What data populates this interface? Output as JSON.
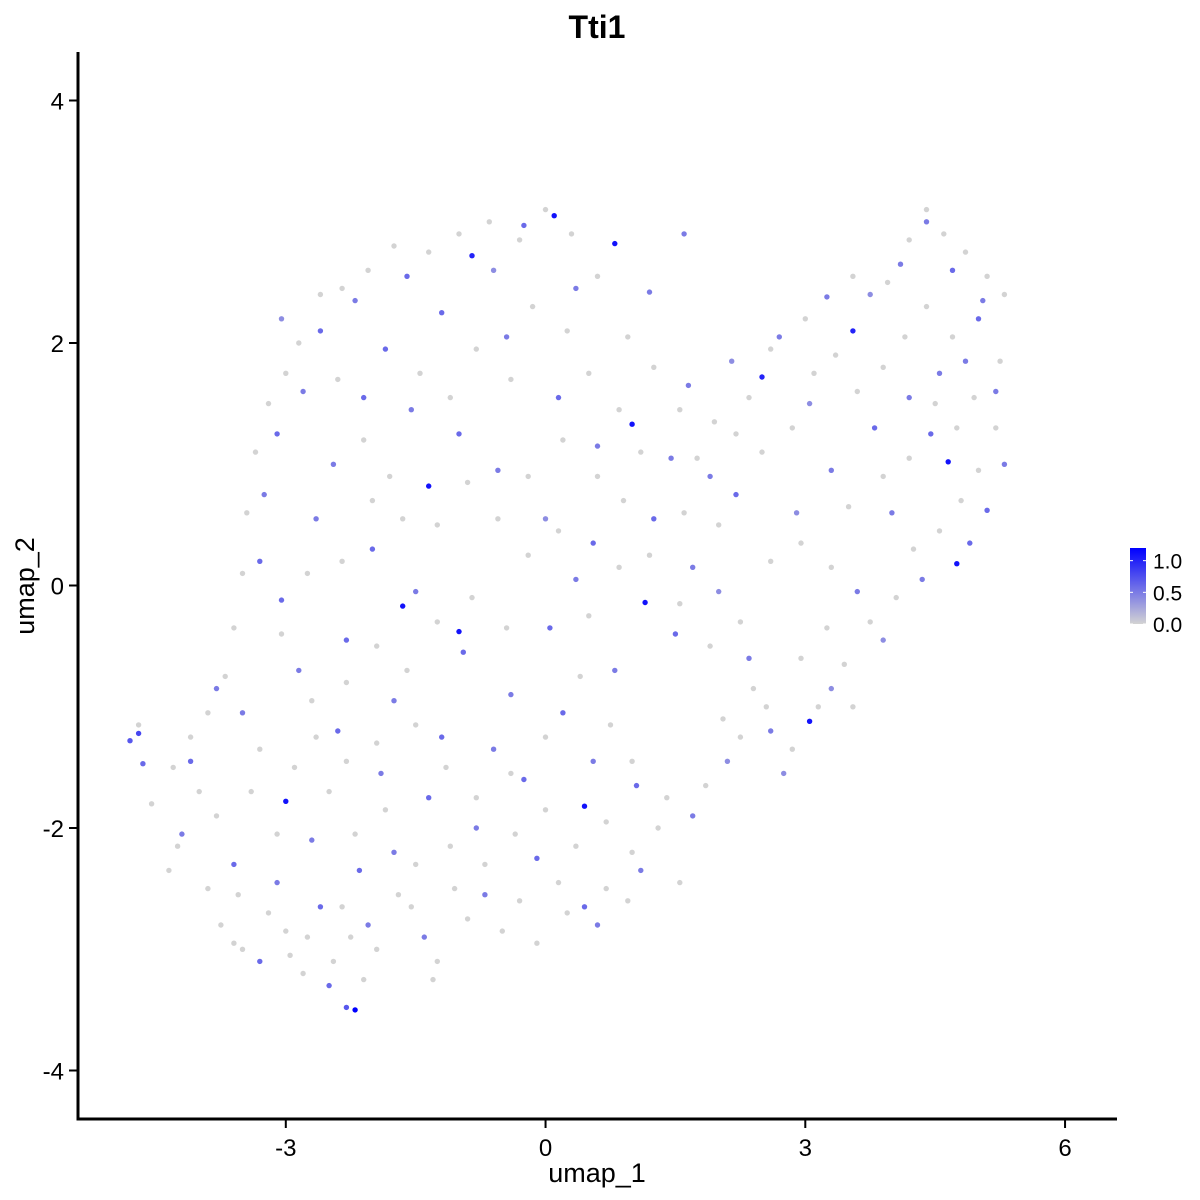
{
  "chart_data": {
    "type": "scatter",
    "title": "Tti1",
    "xlabel": "umap_1",
    "ylabel": "umap_2",
    "xlim": [
      -5.4,
      6.6
    ],
    "ylim": [
      -4.4,
      4.4
    ],
    "x_ticks": [
      -3,
      0,
      3,
      6
    ],
    "x_tick_labels": [
      "-3",
      "0",
      "3",
      "6"
    ],
    "y_ticks": [
      -4,
      -2,
      0,
      2,
      4
    ],
    "y_tick_labels": [
      "-4",
      "-2",
      "0",
      "2",
      "4"
    ],
    "grid": false,
    "legend": {
      "placement": "right",
      "range": [
        0,
        1.2
      ],
      "ticks": [
        0.0,
        0.5,
        1.0
      ],
      "tick_labels": [
        "0.0",
        "0.5",
        "1.0"
      ],
      "low_color": "#d3d3d3",
      "high_color": "#0000ff"
    },
    "point_colors": {
      "low": "#d3d3d3",
      "high": "#0000ff"
    },
    "points": [
      [
        -4.8,
        -1.28,
        0.7
      ],
      [
        -4.7,
        -1.22,
        0.8
      ],
      [
        -4.65,
        -1.47,
        0.6
      ],
      [
        -2.2,
        -3.5,
        1.2
      ],
      [
        -2.3,
        -3.48,
        0.7
      ],
      [
        -3.0,
        -1.78,
        1.1
      ],
      [
        -1.65,
        -0.17,
        1.1
      ],
      [
        -1.35,
        0.82,
        1.1
      ],
      [
        -1.0,
        -0.38,
        1.1
      ],
      [
        -0.85,
        2.72,
        1.0
      ],
      [
        0.1,
        3.05,
        1.1
      ],
      [
        0.8,
        2.82,
        1.1
      ],
      [
        1.0,
        1.33,
        1.1
      ],
      [
        1.15,
        -0.14,
        1.1
      ],
      [
        0.45,
        -1.82,
        1.1
      ],
      [
        2.5,
        1.72,
        1.0
      ],
      [
        3.55,
        2.1,
        1.0
      ],
      [
        4.65,
        1.02,
        1.1
      ],
      [
        4.75,
        0.18,
        1.1
      ],
      [
        3.05,
        -1.12,
        1.1
      ],
      [
        -0.25,
        2.97,
        0.6
      ],
      [
        0.35,
        2.45,
        0.5
      ],
      [
        1.2,
        2.42,
        0.5
      ],
      [
        1.6,
        2.9,
        0.5
      ],
      [
        -1.6,
        2.55,
        0.6
      ],
      [
        -2.6,
        2.1,
        0.6
      ],
      [
        -2.8,
        1.6,
        0.5
      ],
      [
        -3.1,
        1.25,
        0.6
      ],
      [
        -3.25,
        0.75,
        0.5
      ],
      [
        -3.3,
        0.2,
        0.6
      ],
      [
        -3.05,
        -0.12,
        0.6
      ],
      [
        -2.85,
        -0.7,
        0.5
      ],
      [
        -3.5,
        -1.05,
        0.5
      ],
      [
        -3.8,
        -0.85,
        0.5
      ],
      [
        -4.1,
        -1.45,
        0.6
      ],
      [
        -4.2,
        -2.05,
        0.5
      ],
      [
        -3.6,
        -2.3,
        0.6
      ],
      [
        -3.1,
        -2.45,
        0.5
      ],
      [
        -2.6,
        -2.65,
        0.6
      ],
      [
        -2.05,
        -2.8,
        0.5
      ],
      [
        -1.4,
        -2.9,
        0.5
      ],
      [
        -0.7,
        -2.55,
        0.5
      ],
      [
        -0.1,
        -2.25,
        0.6
      ],
      [
        0.45,
        -2.65,
        0.6
      ],
      [
        0.6,
        -2.8,
        0.5
      ],
      [
        1.1,
        -2.35,
        0.5
      ],
      [
        1.7,
        -1.9,
        0.5
      ],
      [
        2.1,
        -1.45,
        0.4
      ],
      [
        2.6,
        -1.2,
        0.5
      ],
      [
        3.3,
        -0.85,
        0.4
      ],
      [
        3.9,
        -0.45,
        0.4
      ],
      [
        4.35,
        0.05,
        0.5
      ],
      [
        4.9,
        0.35,
        0.6
      ],
      [
        5.1,
        0.62,
        0.6
      ],
      [
        5.3,
        1.0,
        0.5
      ],
      [
        5.2,
        1.6,
        0.5
      ],
      [
        5.0,
        2.2,
        0.6
      ],
      [
        4.7,
        2.6,
        0.6
      ],
      [
        4.4,
        3.0,
        0.5
      ],
      [
        4.1,
        2.65,
        0.5
      ],
      [
        3.75,
        2.4,
        0.4
      ],
      [
        3.25,
        2.38,
        0.5
      ],
      [
        2.7,
        2.05,
        0.5
      ],
      [
        2.15,
        1.85,
        0.4
      ],
      [
        1.65,
        1.65,
        0.5
      ],
      [
        1.45,
        1.05,
        0.5
      ],
      [
        1.9,
        0.9,
        0.5
      ],
      [
        2.2,
        0.75,
        0.6
      ],
      [
        2.9,
        0.6,
        0.4
      ],
      [
        3.3,
        0.95,
        0.5
      ],
      [
        3.8,
        1.3,
        0.6
      ],
      [
        4.2,
        1.55,
        0.5
      ],
      [
        4.55,
        1.75,
        0.5
      ],
      [
        0.55,
        0.35,
        0.6
      ],
      [
        0.0,
        0.55,
        0.4
      ],
      [
        -0.55,
        0.95,
        0.5
      ],
      [
        -1.0,
        1.25,
        0.6
      ],
      [
        -1.55,
        1.45,
        0.5
      ],
      [
        -2.1,
        1.55,
        0.6
      ],
      [
        -2.45,
        1.0,
        0.5
      ],
      [
        -2.0,
        0.3,
        0.6
      ],
      [
        -1.5,
        -0.05,
        0.5
      ],
      [
        -0.95,
        -0.55,
        0.6
      ],
      [
        -0.4,
        -0.9,
        0.5
      ],
      [
        0.2,
        -1.05,
        0.6
      ],
      [
        0.8,
        -0.7,
        0.5
      ],
      [
        1.5,
        -0.4,
        0.6
      ],
      [
        2.0,
        -0.05,
        0.4
      ],
      [
        -2.4,
        -1.2,
        0.6
      ],
      [
        -1.9,
        -1.55,
        0.5
      ],
      [
        -1.35,
        -1.75,
        0.6
      ],
      [
        -0.8,
        -2.0,
        0.5
      ],
      [
        -0.25,
        -1.6,
        0.6
      ],
      [
        0.55,
        -1.45,
        0.5
      ],
      [
        1.05,
        -1.65,
        0.6
      ],
      [
        -2.7,
        -2.1,
        0.5
      ],
      [
        -2.15,
        -2.35,
        0.6
      ],
      [
        -1.75,
        -2.2,
        0.5
      ],
      [
        -3.3,
        -3.1,
        0.6
      ],
      [
        -2.5,
        -3.3,
        0.6
      ],
      [
        -0.45,
        2.05,
        0.5
      ],
      [
        0.15,
        1.55,
        0.6
      ],
      [
        0.6,
        1.15,
        0.5
      ],
      [
        -1.2,
        2.25,
        0.6
      ],
      [
        -0.6,
        2.6,
        0.4
      ],
      [
        -2.2,
        2.35,
        0.5
      ],
      [
        -1.85,
        1.95,
        0.6
      ],
      [
        -3.05,
        2.2,
        0.4
      ],
      [
        -2.65,
        0.55,
        0.5
      ],
      [
        -2.3,
        -0.45,
        0.6
      ],
      [
        -1.75,
        -0.95,
        0.5
      ],
      [
        -1.2,
        -1.25,
        0.6
      ],
      [
        -0.6,
        -1.35,
        0.5
      ],
      [
        0.05,
        -0.35,
        0.6
      ],
      [
        0.35,
        0.05,
        0.5
      ],
      [
        1.25,
        0.55,
        0.6
      ],
      [
        1.7,
        0.15,
        0.5
      ],
      [
        2.35,
        -0.6,
        0.5
      ],
      [
        2.75,
        -1.55,
        0.4
      ],
      [
        3.6,
        -0.05,
        0.5
      ],
      [
        4.0,
        0.6,
        0.5
      ],
      [
        4.45,
        1.25,
        0.6
      ],
      [
        4.85,
        1.85,
        0.5
      ],
      [
        5.05,
        2.35,
        0.5
      ],
      [
        3.05,
        1.5,
        0.4
      ],
      [
        -4.7,
        -1.15,
        0.0
      ],
      [
        -4.55,
        -1.8,
        0.0
      ],
      [
        -4.3,
        -1.5,
        0.0
      ],
      [
        -4.25,
        -2.15,
        0.0
      ],
      [
        -4.0,
        -1.7,
        0.0
      ],
      [
        -3.9,
        -2.5,
        0.0
      ],
      [
        -3.75,
        -2.8,
        0.0
      ],
      [
        -3.5,
        -3.0,
        0.0
      ],
      [
        -3.2,
        -2.7,
        0.0
      ],
      [
        -2.95,
        -3.05,
        0.0
      ],
      [
        -2.75,
        -2.9,
        0.0
      ],
      [
        -2.45,
        -3.1,
        0.0
      ],
      [
        -2.25,
        -2.9,
        0.0
      ],
      [
        -1.95,
        -3.0,
        0.0
      ],
      [
        -1.55,
        -2.65,
        0.0
      ],
      [
        -1.25,
        -3.1,
        0.0
      ],
      [
        -0.9,
        -2.75,
        0.0
      ],
      [
        -0.5,
        -2.85,
        0.0
      ],
      [
        -0.1,
        -2.95,
        0.0
      ],
      [
        0.25,
        -2.7,
        0.0
      ],
      [
        0.7,
        -2.5,
        0.0
      ],
      [
        1.0,
        -2.2,
        0.0
      ],
      [
        1.3,
        -2.0,
        0.0
      ],
      [
        1.55,
        -2.45,
        0.0
      ],
      [
        1.85,
        -1.65,
        0.0
      ],
      [
        2.25,
        -1.25,
        0.0
      ],
      [
        2.55,
        -1.0,
        0.0
      ],
      [
        2.85,
        -1.35,
        0.0
      ],
      [
        3.15,
        -1.0,
        0.0
      ],
      [
        3.45,
        -0.65,
        0.0
      ],
      [
        3.75,
        -0.3,
        0.0
      ],
      [
        4.05,
        -0.1,
        0.0
      ],
      [
        4.25,
        0.3,
        0.0
      ],
      [
        4.55,
        0.45,
        0.0
      ],
      [
        4.8,
        0.7,
        0.0
      ],
      [
        5.0,
        0.95,
        0.0
      ],
      [
        5.2,
        1.3,
        0.0
      ],
      [
        5.25,
        1.85,
        0.0
      ],
      [
        5.3,
        2.4,
        0.0
      ],
      [
        5.1,
        2.55,
        0.0
      ],
      [
        4.85,
        2.75,
        0.0
      ],
      [
        4.6,
        2.9,
        0.0
      ],
      [
        4.4,
        3.1,
        0.0
      ],
      [
        4.2,
        2.85,
        0.0
      ],
      [
        3.95,
        2.5,
        0.0
      ],
      [
        3.55,
        2.55,
        0.0
      ],
      [
        3.0,
        2.2,
        0.0
      ],
      [
        2.6,
        1.95,
        0.0
      ],
      [
        2.35,
        1.55,
        0.0
      ],
      [
        1.95,
        1.35,
        0.0
      ],
      [
        1.75,
        1.05,
        0.0
      ],
      [
        1.55,
        1.45,
        0.0
      ],
      [
        1.25,
        1.8,
        0.0
      ],
      [
        0.95,
        2.05,
        0.0
      ],
      [
        0.6,
        2.55,
        0.0
      ],
      [
        0.3,
        2.9,
        0.0
      ],
      [
        0.0,
        3.1,
        0.0
      ],
      [
        -0.3,
        2.85,
        0.0
      ],
      [
        -0.65,
        3.0,
        0.0
      ],
      [
        -1.0,
        2.9,
        0.0
      ],
      [
        -1.35,
        2.75,
        0.0
      ],
      [
        -1.75,
        2.8,
        0.0
      ],
      [
        -2.05,
        2.6,
        0.0
      ],
      [
        -2.35,
        2.45,
        0.0
      ],
      [
        -2.6,
        2.4,
        0.0
      ],
      [
        -2.85,
        2.0,
        0.0
      ],
      [
        -3.0,
        1.75,
        0.0
      ],
      [
        -3.2,
        1.5,
        0.0
      ],
      [
        -3.35,
        1.1,
        0.0
      ],
      [
        -3.45,
        0.6,
        0.0
      ],
      [
        -3.5,
        0.1,
        0.0
      ],
      [
        -3.6,
        -0.35,
        0.0
      ],
      [
        -3.7,
        -0.75,
        0.0
      ],
      [
        -3.9,
        -1.05,
        0.0
      ],
      [
        -4.1,
        -1.25,
        0.0
      ],
      [
        -2.4,
        1.7,
        0.0
      ],
      [
        -2.1,
        1.2,
        0.0
      ],
      [
        -1.8,
        0.9,
        0.0
      ],
      [
        -1.45,
        1.75,
        0.0
      ],
      [
        -1.1,
        1.55,
        0.0
      ],
      [
        -0.8,
        1.95,
        0.0
      ],
      [
        -0.4,
        1.7,
        0.0
      ],
      [
        -0.15,
        2.3,
        0.0
      ],
      [
        0.25,
        2.1,
        0.0
      ],
      [
        0.5,
        1.75,
        0.0
      ],
      [
        0.85,
        1.45,
        0.0
      ],
      [
        1.1,
        1.1,
        0.0
      ],
      [
        0.9,
        0.7,
        0.0
      ],
      [
        0.6,
        0.9,
        0.0
      ],
      [
        0.2,
        1.2,
        0.0
      ],
      [
        -0.2,
        0.9,
        0.0
      ],
      [
        -0.55,
        0.55,
        0.0
      ],
      [
        -0.9,
        0.85,
        0.0
      ],
      [
        -1.25,
        0.5,
        0.0
      ],
      [
        -1.65,
        0.55,
        0.0
      ],
      [
        -2.0,
        0.7,
        0.0
      ],
      [
        -2.35,
        0.2,
        0.0
      ],
      [
        -2.75,
        0.1,
        0.0
      ],
      [
        -3.05,
        -0.4,
        0.0
      ],
      [
        -2.7,
        -0.95,
        0.0
      ],
      [
        -2.3,
        -0.8,
        0.0
      ],
      [
        -1.95,
        -0.5,
        0.0
      ],
      [
        -1.6,
        -0.7,
        0.0
      ],
      [
        -1.25,
        -0.3,
        0.0
      ],
      [
        -0.85,
        -0.1,
        0.0
      ],
      [
        -0.45,
        -0.35,
        0.0
      ],
      [
        -0.2,
        0.25,
        0.0
      ],
      [
        0.15,
        0.45,
        0.0
      ],
      [
        0.5,
        -0.25,
        0.0
      ],
      [
        0.85,
        0.15,
        0.0
      ],
      [
        1.2,
        0.25,
        0.0
      ],
      [
        1.55,
        -0.15,
        0.0
      ],
      [
        1.9,
        -0.5,
        0.0
      ],
      [
        2.25,
        -0.3,
        0.0
      ],
      [
        2.6,
        0.2,
        0.0
      ],
      [
        2.95,
        0.35,
        0.0
      ],
      [
        3.3,
        0.15,
        0.0
      ],
      [
        3.5,
        0.65,
        0.0
      ],
      [
        3.9,
        0.9,
        0.0
      ],
      [
        4.2,
        1.05,
        0.0
      ],
      [
        4.5,
        1.5,
        0.0
      ],
      [
        4.75,
        1.3,
        0.0
      ],
      [
        4.95,
        1.55,
        0.0
      ],
      [
        4.7,
        2.05,
        0.0
      ],
      [
        4.4,
        2.3,
        0.0
      ],
      [
        4.15,
        2.05,
        0.0
      ],
      [
        3.9,
        1.8,
        0.0
      ],
      [
        3.6,
        1.6,
        0.0
      ],
      [
        3.35,
        1.9,
        0.0
      ],
      [
        3.1,
        1.75,
        0.0
      ],
      [
        2.85,
        1.3,
        0.0
      ],
      [
        2.5,
        1.1,
        0.0
      ],
      [
        2.2,
        1.25,
        0.0
      ],
      [
        2.0,
        0.5,
        0.0
      ],
      [
        1.6,
        0.6,
        0.0
      ],
      [
        -3.8,
        -1.9,
        0.0
      ],
      [
        -3.4,
        -1.7,
        0.0
      ],
      [
        -3.1,
        -2.05,
        0.0
      ],
      [
        -2.9,
        -1.5,
        0.0
      ],
      [
        -2.5,
        -1.7,
        0.0
      ],
      [
        -2.2,
        -2.05,
        0.0
      ],
      [
        -1.85,
        -1.85,
        0.0
      ],
      [
        -1.5,
        -2.3,
        0.0
      ],
      [
        -1.1,
        -2.15,
        0.0
      ],
      [
        -0.7,
        -2.3,
        0.0
      ],
      [
        -0.35,
        -2.05,
        0.0
      ],
      [
        0.0,
        -1.85,
        0.0
      ],
      [
        0.35,
        -2.15,
        0.0
      ],
      [
        0.7,
        -1.95,
        0.0
      ],
      [
        1.0,
        -1.45,
        0.0
      ],
      [
        0.75,
        -1.15,
        0.0
      ],
      [
        0.4,
        -0.75,
        0.0
      ],
      [
        0.0,
        -1.25,
        0.0
      ],
      [
        -0.4,
        -1.55,
        0.0
      ],
      [
        -0.8,
        -1.75,
        0.0
      ],
      [
        -1.15,
        -1.5,
        0.0
      ],
      [
        -1.5,
        -1.15,
        0.0
      ],
      [
        -1.95,
        -1.3,
        0.0
      ],
      [
        -2.3,
        -1.45,
        0.0
      ],
      [
        -2.65,
        -1.25,
        0.0
      ],
      [
        -3.3,
        -1.35,
        0.0
      ],
      [
        -3.55,
        -2.55,
        0.0
      ],
      [
        -3.0,
        -2.85,
        0.0
      ],
      [
        -2.35,
        -2.65,
        0.0
      ],
      [
        -1.7,
        -2.55,
        0.0
      ],
      [
        -1.05,
        -2.5,
        0.0
      ],
      [
        -0.3,
        -2.6,
        0.0
      ],
      [
        0.15,
        -2.45,
        0.0
      ],
      [
        0.95,
        -2.6,
        0.0
      ],
      [
        1.4,
        -1.75,
        0.0
      ],
      [
        2.05,
        -1.1,
        0.0
      ],
      [
        2.4,
        -0.85,
        0.0
      ],
      [
        2.95,
        -0.6,
        0.0
      ],
      [
        3.25,
        -0.35,
        0.0
      ],
      [
        3.55,
        -1.0,
        0.0
      ],
      [
        -1.3,
        -3.25,
        0.0
      ],
      [
        -2.1,
        -3.25,
        0.0
      ],
      [
        -2.8,
        -3.2,
        0.0
      ],
      [
        -3.6,
        -2.95,
        0.0
      ],
      [
        -4.35,
        -2.35,
        0.0
      ]
    ]
  }
}
